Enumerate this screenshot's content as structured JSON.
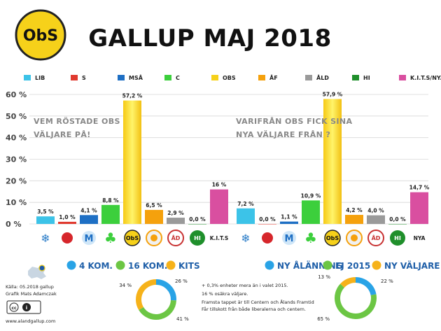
{
  "header": {
    "title": "GALLUP MAJ 2018",
    "logo_text": "ObS"
  },
  "legend": [
    {
      "label": "LIB",
      "color": "#3cc3e8"
    },
    {
      "label": "S",
      "color": "#e03a2f"
    },
    {
      "label": "MSÅ",
      "color": "#1e6fc4"
    },
    {
      "label": "C",
      "color": "#3ccf3c"
    },
    {
      "label": "OBS",
      "color": "#f6d11a"
    },
    {
      "label": "ÅF",
      "color": "#f5a10d"
    },
    {
      "label": "ÅLD",
      "color": "#9a9a9a"
    },
    {
      "label": "HI",
      "color": "#1f8f2b"
    },
    {
      "label": "K.I.T.S/NYA",
      "color": "#d94fa0"
    }
  ],
  "chart_data": [
    {
      "type": "bar",
      "note": [
        "VEM RÖSTADE OBS",
        "VÄLJARE  PÅ!"
      ],
      "categories": [
        "LIB",
        "S",
        "MSÅ",
        "C",
        "OBS",
        "ÅF",
        "ÅLD",
        "HI",
        "K.I.T.S"
      ],
      "values": [
        3.5,
        1.0,
        4.1,
        8.8,
        57.2,
        6.5,
        2.9,
        0.0,
        16
      ],
      "value_labels": [
        "3,5 %",
        "1,0 %",
        "4,1 %",
        "8,8 %",
        "57,2 %",
        "6,5 %",
        "2,9 %",
        "0,0 %",
        "16 %"
      ],
      "ylim": [
        0,
        60
      ],
      "yticks": [
        "0 %",
        "10 %",
        "20 %",
        "30 %",
        "40 %",
        "50 %",
        "60 %"
      ],
      "grid": true
    },
    {
      "type": "bar",
      "note": [
        "VARIFRÅN OBS FICK SINA",
        "NYA VÄLJARE FRÅN ?"
      ],
      "categories": [
        "LIB",
        "S",
        "MSÅ",
        "C",
        "OBS",
        "ÅF",
        "ÅLD",
        "HI",
        "NYA"
      ],
      "values": [
        7.2,
        0.0,
        1.1,
        10.9,
        57.9,
        4.2,
        4.0,
        0.0,
        14.7
      ],
      "value_labels": [
        "7,2 %",
        "0,0 %",
        "1,1 %",
        "10,9 %",
        "57,9 %",
        "4,2 %",
        "4,0 %",
        "0,0 %",
        "14,7 %"
      ],
      "ylim": [
        0,
        60
      ],
      "grid": true
    },
    {
      "type": "pie",
      "categories": [
        "4 KOM.",
        "16 KOM.",
        "KITS"
      ],
      "values": [
        26,
        41,
        34
      ],
      "value_labels": [
        "26 %",
        "41 %",
        "34 %"
      ],
      "colors": [
        "#29a3e6",
        "#6cc644",
        "#f6b21a"
      ]
    },
    {
      "type": "pie",
      "categories": [
        "NY ÅLÄNNING",
        "EJ 2015",
        "NY VÄLJARE"
      ],
      "values": [
        22,
        65,
        13
      ],
      "value_labels": [
        "22 %",
        "65 %",
        "13 %"
      ],
      "colors": [
        "#29a3e6",
        "#6cc644",
        "#f6b21a"
      ]
    }
  ],
  "center_notes": {
    "line1": "+ 0,3% enheter  mera än i valet 2015.",
    "line2": "16 % osäkra väljare.",
    "line3": "Framsta tappet är till Centern och Ålands Framtid",
    "line4": "Får tillskott från både liberalerna och centern."
  },
  "credits": {
    "source": "Källa: 05.2018 gallup",
    "author": "Grafik Mats Adamczak",
    "url": "www.alandgallup.com",
    "license": "cc  BY"
  },
  "party_icons": {
    "hi": "HI",
    "kits": "K.I.T.S",
    "nya": "NYA",
    "obs": "ObS",
    "ad": "ÅD"
  }
}
